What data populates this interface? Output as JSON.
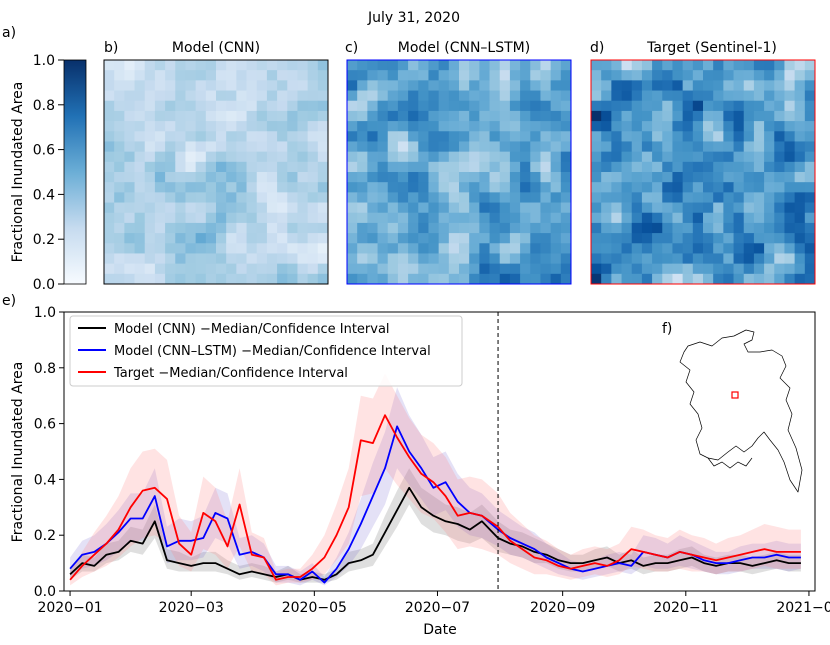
{
  "figure": {
    "suptitle": "July 31, 2020",
    "panel_labels": {
      "a": "a)",
      "b": "b)",
      "c": "c)",
      "d": "d)",
      "e": "e)",
      "f": "f)"
    },
    "colors": {
      "map_light": "#f2f8fe",
      "map_dark": "#08306b"
    }
  },
  "chart_data": [
    {
      "type": "heatmap",
      "role": "colorbar",
      "ylabel": "Fractional Inundated Area",
      "ylim": [
        0.0,
        1.0
      ],
      "ticks": [
        "0.0",
        "0.2",
        "0.4",
        "0.6",
        "0.8",
        "1.0"
      ],
      "colormap": "Blues"
    },
    {
      "type": "heatmap",
      "title": "Model (CNN)",
      "grid_size": 22,
      "value_mean": 0.3,
      "value_spread": 0.2,
      "edge_color": "#000000",
      "seed": 11
    },
    {
      "type": "heatmap",
      "title": "Model (CNN–LSTM)",
      "grid_size": 22,
      "value_mean": 0.55,
      "value_spread": 0.3,
      "edge_color": "#0000ff",
      "seed": 23
    },
    {
      "type": "heatmap",
      "title": "Target (Sentinel-1)",
      "grid_size": 22,
      "value_mean": 0.6,
      "value_spread": 0.35,
      "edge_color": "#ff0000",
      "seed": 37
    },
    {
      "type": "line",
      "xlabel": "Date",
      "ylabel": "Fractional Inundated Area",
      "xlim": [
        -3,
        369
      ],
      "ylim": [
        0.0,
        1.0
      ],
      "xticks": [
        {
          "day": 0,
          "label": "2020−01"
        },
        {
          "day": 60,
          "label": "2020−03"
        },
        {
          "day": 121,
          "label": "2020−05"
        },
        {
          "day": 182,
          "label": "2020−07"
        },
        {
          "day": 244,
          "label": "2020−09"
        },
        {
          "day": 305,
          "label": "2020−11"
        },
        {
          "day": 366,
          "label": "2021−01"
        }
      ],
      "yticks": [
        "0.0",
        "0.2",
        "0.4",
        "0.6",
        "0.8",
        "1.0"
      ],
      "vline_day": 212,
      "x": [
        0,
        6,
        12,
        18,
        24,
        30,
        36,
        42,
        48,
        54,
        60,
        66,
        72,
        78,
        84,
        90,
        96,
        102,
        108,
        114,
        120,
        126,
        132,
        138,
        144,
        150,
        156,
        162,
        168,
        174,
        180,
        186,
        192,
        198,
        204,
        212,
        218,
        224,
        230,
        236,
        242,
        248,
        254,
        260,
        266,
        272,
        278,
        284,
        290,
        296,
        302,
        308,
        314,
        320,
        326,
        332,
        338,
        344,
        350,
        356,
        362
      ],
      "series": [
        {
          "name": "Model (CNN) −Median/Confidence Interval",
          "color": "#000000",
          "fill_color": "#808080",
          "fill_opacity": 0.25,
          "median": [
            0.06,
            0.1,
            0.09,
            0.13,
            0.14,
            0.18,
            0.17,
            0.25,
            0.11,
            0.1,
            0.09,
            0.1,
            0.1,
            0.08,
            0.06,
            0.07,
            0.06,
            0.05,
            0.06,
            0.04,
            0.05,
            0.04,
            0.06,
            0.1,
            0.11,
            0.13,
            0.21,
            0.29,
            0.37,
            0.3,
            0.27,
            0.25,
            0.24,
            0.22,
            0.25,
            0.19,
            0.17,
            0.16,
            0.14,
            0.13,
            0.11,
            0.1,
            0.1,
            0.11,
            0.12,
            0.1,
            0.11,
            0.09,
            0.1,
            0.1,
            0.11,
            0.12,
            0.1,
            0.09,
            0.1,
            0.1,
            0.09,
            0.1,
            0.11,
            0.1,
            0.1
          ],
          "lower": [
            0.04,
            0.07,
            0.07,
            0.1,
            0.11,
            0.14,
            0.13,
            0.19,
            0.08,
            0.07,
            0.07,
            0.07,
            0.07,
            0.06,
            0.04,
            0.05,
            0.04,
            0.03,
            0.04,
            0.03,
            0.03,
            0.03,
            0.04,
            0.07,
            0.08,
            0.09,
            0.16,
            0.23,
            0.31,
            0.24,
            0.21,
            0.2,
            0.18,
            0.17,
            0.19,
            0.14,
            0.13,
            0.12,
            0.1,
            0.1,
            0.08,
            0.07,
            0.07,
            0.08,
            0.09,
            0.07,
            0.08,
            0.06,
            0.07,
            0.07,
            0.08,
            0.09,
            0.07,
            0.06,
            0.07,
            0.07,
            0.06,
            0.07,
            0.08,
            0.07,
            0.07
          ],
          "upper": [
            0.08,
            0.13,
            0.12,
            0.17,
            0.18,
            0.23,
            0.22,
            0.31,
            0.15,
            0.14,
            0.12,
            0.14,
            0.14,
            0.11,
            0.09,
            0.1,
            0.09,
            0.07,
            0.09,
            0.06,
            0.07,
            0.06,
            0.08,
            0.14,
            0.15,
            0.17,
            0.27,
            0.36,
            0.44,
            0.37,
            0.34,
            0.31,
            0.3,
            0.28,
            0.31,
            0.25,
            0.22,
            0.21,
            0.19,
            0.17,
            0.15,
            0.13,
            0.13,
            0.15,
            0.16,
            0.13,
            0.15,
            0.12,
            0.13,
            0.13,
            0.15,
            0.16,
            0.13,
            0.12,
            0.13,
            0.13,
            0.12,
            0.13,
            0.14,
            0.13,
            0.13
          ]
        },
        {
          "name": "Model (CNN–LSTM) −Median/Confidence Interval",
          "color": "#0000ff",
          "fill_color": "#6a5acd",
          "fill_opacity": 0.18,
          "median": [
            0.08,
            0.13,
            0.14,
            0.17,
            0.21,
            0.26,
            0.26,
            0.34,
            0.16,
            0.18,
            0.18,
            0.19,
            0.28,
            0.26,
            0.13,
            0.14,
            0.12,
            0.06,
            0.06,
            0.04,
            0.07,
            0.03,
            0.08,
            0.15,
            0.24,
            0.34,
            0.44,
            0.59,
            0.5,
            0.44,
            0.37,
            0.39,
            0.32,
            0.28,
            0.27,
            0.22,
            0.19,
            0.17,
            0.15,
            0.12,
            0.1,
            0.08,
            0.07,
            0.08,
            0.09,
            0.1,
            0.09,
            0.14,
            0.13,
            0.12,
            0.14,
            0.13,
            0.11,
            0.1,
            0.1,
            0.11,
            0.12,
            0.12,
            0.13,
            0.12,
            0.12
          ],
          "lower": [
            0.05,
            0.08,
            0.09,
            0.11,
            0.14,
            0.18,
            0.18,
            0.24,
            0.1,
            0.11,
            0.11,
            0.12,
            0.19,
            0.17,
            0.08,
            0.09,
            0.07,
            0.03,
            0.03,
            0.02,
            0.04,
            0.02,
            0.05,
            0.09,
            0.15,
            0.23,
            0.31,
            0.44,
            0.38,
            0.33,
            0.27,
            0.29,
            0.23,
            0.2,
            0.19,
            0.16,
            0.13,
            0.12,
            0.1,
            0.08,
            0.06,
            0.05,
            0.04,
            0.05,
            0.06,
            0.07,
            0.06,
            0.09,
            0.08,
            0.08,
            0.09,
            0.08,
            0.07,
            0.06,
            0.06,
            0.07,
            0.08,
            0.08,
            0.08,
            0.07,
            0.08
          ],
          "upper": [
            0.12,
            0.18,
            0.2,
            0.24,
            0.29,
            0.35,
            0.35,
            0.44,
            0.23,
            0.26,
            0.25,
            0.27,
            0.37,
            0.35,
            0.19,
            0.2,
            0.17,
            0.09,
            0.09,
            0.07,
            0.1,
            0.05,
            0.12,
            0.21,
            0.33,
            0.46,
            0.57,
            0.73,
            0.63,
            0.56,
            0.48,
            0.5,
            0.42,
            0.37,
            0.35,
            0.29,
            0.26,
            0.23,
            0.21,
            0.17,
            0.14,
            0.11,
            0.1,
            0.11,
            0.13,
            0.14,
            0.13,
            0.2,
            0.19,
            0.17,
            0.2,
            0.18,
            0.16,
            0.14,
            0.14,
            0.16,
            0.17,
            0.17,
            0.18,
            0.17,
            0.17
          ]
        },
        {
          "name": "Target −Median/Confidence Interval",
          "color": "#ff0000",
          "fill_color": "#ff8080",
          "fill_opacity": 0.22,
          "median": [
            0.04,
            0.09,
            0.13,
            0.17,
            0.22,
            0.3,
            0.36,
            0.37,
            0.33,
            0.17,
            0.13,
            0.28,
            0.25,
            0.16,
            0.31,
            0.13,
            0.12,
            0.04,
            0.05,
            0.05,
            0.08,
            0.12,
            0.2,
            0.3,
            0.54,
            0.53,
            0.63,
            0.55,
            0.48,
            0.42,
            0.39,
            0.34,
            0.27,
            0.28,
            0.27,
            0.23,
            0.18,
            0.15,
            0.12,
            0.11,
            0.09,
            0.08,
            0.09,
            0.1,
            0.09,
            0.11,
            0.15,
            0.14,
            0.13,
            0.12,
            0.14,
            0.13,
            0.12,
            0.11,
            0.12,
            0.13,
            0.14,
            0.15,
            0.14,
            0.14,
            0.14
          ],
          "lower": [
            0.02,
            0.05,
            0.07,
            0.09,
            0.12,
            0.16,
            0.19,
            0.2,
            0.17,
            0.09,
            0.07,
            0.15,
            0.13,
            0.08,
            0.16,
            0.07,
            0.06,
            0.02,
            0.03,
            0.03,
            0.04,
            0.06,
            0.11,
            0.17,
            0.34,
            0.35,
            0.44,
            0.38,
            0.33,
            0.28,
            0.26,
            0.21,
            0.15,
            0.16,
            0.15,
            0.13,
            0.1,
            0.08,
            0.06,
            0.06,
            0.05,
            0.04,
            0.05,
            0.06,
            0.05,
            0.06,
            0.09,
            0.08,
            0.07,
            0.07,
            0.08,
            0.07,
            0.07,
            0.06,
            0.07,
            0.07,
            0.08,
            0.09,
            0.08,
            0.08,
            0.08
          ],
          "upper": [
            0.07,
            0.14,
            0.21,
            0.27,
            0.34,
            0.44,
            0.5,
            0.51,
            0.47,
            0.27,
            0.21,
            0.41,
            0.37,
            0.25,
            0.44,
            0.21,
            0.19,
            0.07,
            0.08,
            0.08,
            0.13,
            0.2,
            0.31,
            0.44,
            0.7,
            0.69,
            0.78,
            0.7,
            0.62,
            0.56,
            0.53,
            0.48,
            0.4,
            0.41,
            0.4,
            0.35,
            0.28,
            0.24,
            0.2,
            0.18,
            0.15,
            0.13,
            0.15,
            0.16,
            0.15,
            0.17,
            0.23,
            0.22,
            0.2,
            0.19,
            0.22,
            0.2,
            0.19,
            0.17,
            0.19,
            0.2,
            0.22,
            0.24,
            0.23,
            0.22,
            0.22
          ]
        }
      ]
    }
  ]
}
